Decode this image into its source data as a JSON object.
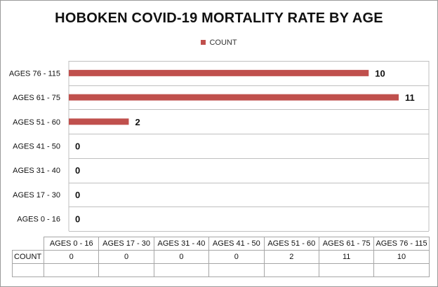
{
  "chart_data": {
    "type": "bar",
    "orientation": "horizontal",
    "title": "HOBOKEN COVID-19  MORTALITY RATE BY AGE",
    "categories": [
      "AGES 0 - 16",
      "AGES 17 - 30",
      "AGES 31 - 40",
      "AGES 41 - 50",
      "AGES 51 - 60",
      "AGES 61 - 75",
      "AGES 76 - 115"
    ],
    "series": [
      {
        "name": "COUNT",
        "values": [
          0,
          0,
          0,
          0,
          2,
          11,
          10
        ],
        "color": "#c0504d"
      }
    ],
    "xlim": [
      0,
      11
    ],
    "grid": true,
    "legend": "top",
    "data_labels": true,
    "data_table": true
  }
}
